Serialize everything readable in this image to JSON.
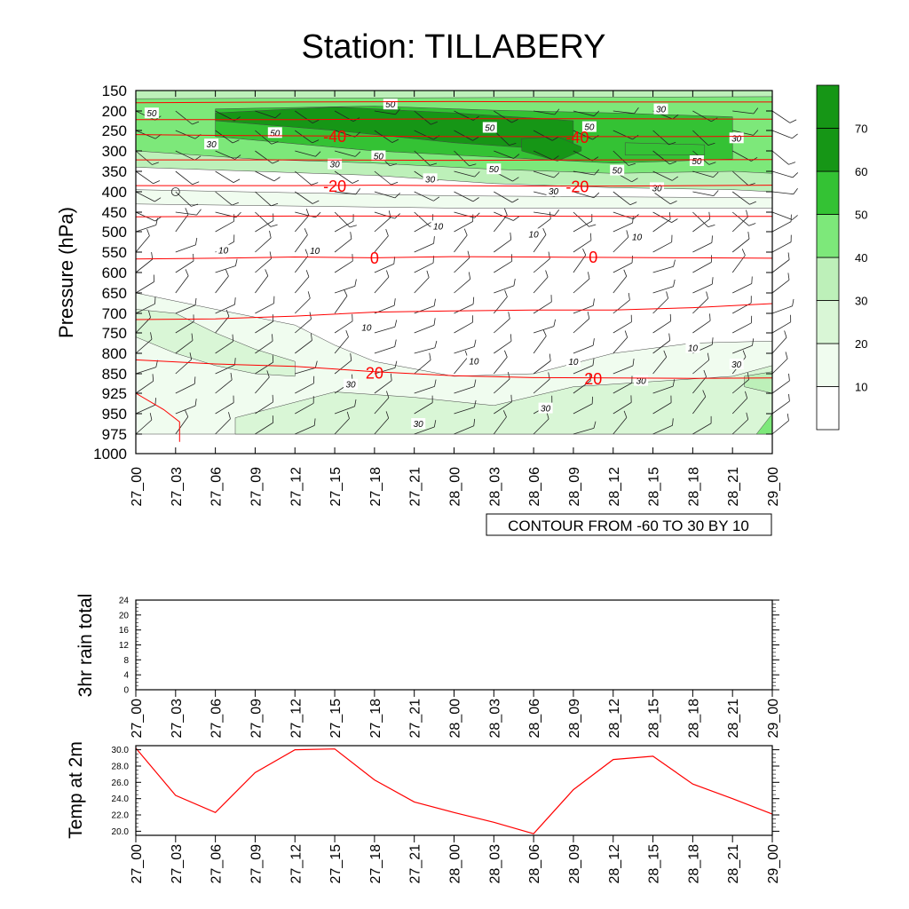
{
  "title": "Station: TILLABERY",
  "colors": {
    "fill_levels": [
      "#ffffff",
      "#f0fcef",
      "#d9f6d6",
      "#bdf0b9",
      "#7de87a",
      "#34c234",
      "#169616"
    ],
    "temp_line": "#ff0000",
    "contour_line": "#1a1a1a",
    "axis": "#000000"
  },
  "charts": [
    {
      "id": "sounding",
      "type": "heatmap",
      "ylabel": "Pressure (hPa)",
      "ytick_labels": [
        "150",
        "200",
        "250",
        "300",
        "350",
        "400",
        "450",
        "500",
        "550",
        "600",
        "650",
        "700",
        "750",
        "800",
        "850",
        "925",
        "950",
        "975",
        "1000"
      ],
      "xtick_labels": [
        "27_00",
        "27_03",
        "27_06",
        "27_09",
        "27_12",
        "27_15",
        "27_18",
        "27_21",
        "28_00",
        "28_03",
        "28_06",
        "28_09",
        "28_12",
        "28_15",
        "28_18",
        "28_21",
        "29_00"
      ],
      "info_label": "CONTOUR FROM -60 TO 30 BY 10",
      "colorbar": {
        "labels": [
          "10",
          "20",
          "30",
          "40",
          "50",
          "60",
          "70"
        ],
        "levels": [
          0,
          10,
          20,
          30,
          40,
          50,
          60,
          70,
          80
        ]
      },
      "temp_contours": [
        {
          "value": -40,
          "label": "-40",
          "points": [
            [
              0,
              260
            ],
            [
              2,
              262
            ],
            [
              4,
              263
            ],
            [
              6,
              264
            ],
            [
              8,
              265
            ],
            [
              10,
              265
            ],
            [
              12,
              265
            ],
            [
              14,
              265
            ],
            [
              16,
              264
            ]
          ]
        },
        {
          "value": -20,
          "label": "-20",
          "points": [
            [
              0,
              385
            ],
            [
              2,
              385
            ],
            [
              4,
              385
            ],
            [
              6,
              384
            ],
            [
              8,
              385
            ],
            [
              10,
              386
            ],
            [
              12,
              386
            ],
            [
              14,
              385
            ],
            [
              16,
              384
            ]
          ]
        },
        {
          "value": -10,
          "label": "",
          "points": [
            [
              0,
              462
            ],
            [
              4,
              460
            ],
            [
              8,
              460
            ],
            [
              12,
              461
            ],
            [
              16,
              461
            ]
          ]
        },
        {
          "value": 0,
          "label": "0",
          "points": [
            [
              0,
              567
            ],
            [
              2,
              565
            ],
            [
              4,
              562
            ],
            [
              6,
              564
            ],
            [
              8,
              561
            ],
            [
              10,
              562
            ],
            [
              12,
              563
            ],
            [
              14,
              564
            ],
            [
              16,
              565
            ]
          ]
        },
        {
          "value": 10,
          "label": "",
          "points": [
            [
              0,
              716
            ],
            [
              2,
              714
            ],
            [
              4,
              707
            ],
            [
              6,
              697
            ],
            [
              8,
              694
            ],
            [
              10,
              692
            ],
            [
              12,
              692
            ],
            [
              14,
              686
            ],
            [
              16,
              676
            ]
          ]
        },
        {
          "value": 20,
          "label": "20",
          "points": [
            [
              0,
              816
            ],
            [
              2,
              826
            ],
            [
              4,
              832
            ],
            [
              6,
              845
            ],
            [
              8,
              858
            ],
            [
              10,
              865
            ],
            [
              12,
              866
            ],
            [
              14,
              868
            ],
            [
              16,
              866
            ]
          ]
        },
        {
          "value": -50,
          "label": "",
          "points": [
            [
              0,
              222
            ],
            [
              4,
              222
            ],
            [
              8,
              220
            ],
            [
              12,
              220
            ],
            [
              16,
              221
            ]
          ]
        },
        {
          "value": -60,
          "label": "",
          "points": [
            [
              0,
              180
            ],
            [
              4,
              178
            ],
            [
              8,
              177
            ],
            [
              12,
              178
            ],
            [
              16,
              178
            ]
          ]
        },
        {
          "value": -30,
          "label": "",
          "points": [
            [
              0,
              322
            ],
            [
              4,
              322
            ],
            [
              8,
              323
            ],
            [
              12,
              322
            ],
            [
              16,
              321
            ]
          ]
        }
      ],
      "temp_labels": [
        {
          "text": "-40",
          "x": 5.0,
          "p": 263
        },
        {
          "text": "-40",
          "x": 11.1,
          "p": 265
        },
        {
          "text": "-20",
          "x": 5.0,
          "p": 385
        },
        {
          "text": "-20",
          "x": 11.1,
          "p": 386
        },
        {
          "text": "0",
          "x": 6.0,
          "p": 563
        },
        {
          "text": "0",
          "x": 11.5,
          "p": 561
        },
        {
          "text": "20",
          "x": 6.0,
          "p": 847
        },
        {
          "text": "20",
          "x": 11.5,
          "p": 867
        }
      ],
      "speed_labels": [
        {
          "text": "50",
          "x": 0.4,
          "p": 205
        },
        {
          "text": "50",
          "x": 6.4,
          "p": 183
        },
        {
          "text": "50",
          "x": 3.5,
          "p": 255
        },
        {
          "text": "50",
          "x": 8.9,
          "p": 242
        },
        {
          "text": "50",
          "x": 11.4,
          "p": 240
        },
        {
          "text": "30",
          "x": 13.2,
          "p": 195
        },
        {
          "text": "30",
          "x": 15.1,
          "p": 268
        },
        {
          "text": "30",
          "x": 1.9,
          "p": 283
        },
        {
          "text": "50",
          "x": 6.1,
          "p": 312
        },
        {
          "text": "30",
          "x": 5.0,
          "p": 332
        },
        {
          "text": "50",
          "x": 9.0,
          "p": 344
        },
        {
          "text": "50",
          "x": 12.1,
          "p": 347
        },
        {
          "text": "50",
          "x": 14.1,
          "p": 324
        },
        {
          "text": "30",
          "x": 7.4,
          "p": 368
        },
        {
          "text": "30",
          "x": 10.5,
          "p": 398
        },
        {
          "text": "30",
          "x": 13.1,
          "p": 390
        },
        {
          "text": "10",
          "x": 7.6,
          "p": 485
        },
        {
          "text": "10",
          "x": 10.0,
          "p": 505
        },
        {
          "text": "10",
          "x": 12.6,
          "p": 512
        },
        {
          "text": "10",
          "x": 2.2,
          "p": 545
        },
        {
          "text": "10",
          "x": 4.5,
          "p": 546
        },
        {
          "text": "10",
          "x": 5.8,
          "p": 735
        },
        {
          "text": "10",
          "x": 8.5,
          "p": 818
        },
        {
          "text": "10",
          "x": 11.0,
          "p": 820
        },
        {
          "text": "10",
          "x": 14.0,
          "p": 786
        },
        {
          "text": "30",
          "x": 15.1,
          "p": 826
        },
        {
          "text": "30",
          "x": 5.4,
          "p": 890
        },
        {
          "text": "30",
          "x": 12.7,
          "p": 876
        },
        {
          "text": "30",
          "x": 10.3,
          "p": 943
        },
        {
          "text": "30",
          "x": 7.1,
          "p": 962
        }
      ]
    },
    {
      "id": "rain",
      "type": "line",
      "ylabel": "3hr rain total",
      "ylim": [
        0,
        24
      ],
      "ytick_labels": [
        "0",
        "4",
        "8",
        "12",
        "16",
        "20",
        "24"
      ],
      "xtick_labels": [
        "27_00",
        "27_03",
        "27_06",
        "27_09",
        "27_12",
        "27_15",
        "27_18",
        "27_21",
        "28_00",
        "28_03",
        "28_06",
        "28_09",
        "28_12",
        "28_15",
        "28_18",
        "28_21",
        "29_00"
      ],
      "values": []
    },
    {
      "id": "temp2m",
      "type": "line",
      "ylabel": "Temp at 2m",
      "ylim": [
        19.5,
        30.5
      ],
      "ytick_labels": [
        "20.0",
        "22.0",
        "24.0",
        "26.0",
        "28.0",
        "30.0"
      ],
      "xtick_labels": [
        "27_00",
        "27_03",
        "27_06",
        "27_09",
        "27_12",
        "27_15",
        "27_18",
        "27_21",
        "28_00",
        "28_03",
        "28_06",
        "28_09",
        "28_12",
        "28_15",
        "28_18",
        "28_21",
        "29_00"
      ],
      "values": [
        30.2,
        24.4,
        22.3,
        27.2,
        30.0,
        30.1,
        26.3,
        23.6,
        22.3,
        21.1,
        19.7,
        25.1,
        28.8,
        29.2,
        25.8,
        24.0,
        22.1
      ]
    }
  ]
}
